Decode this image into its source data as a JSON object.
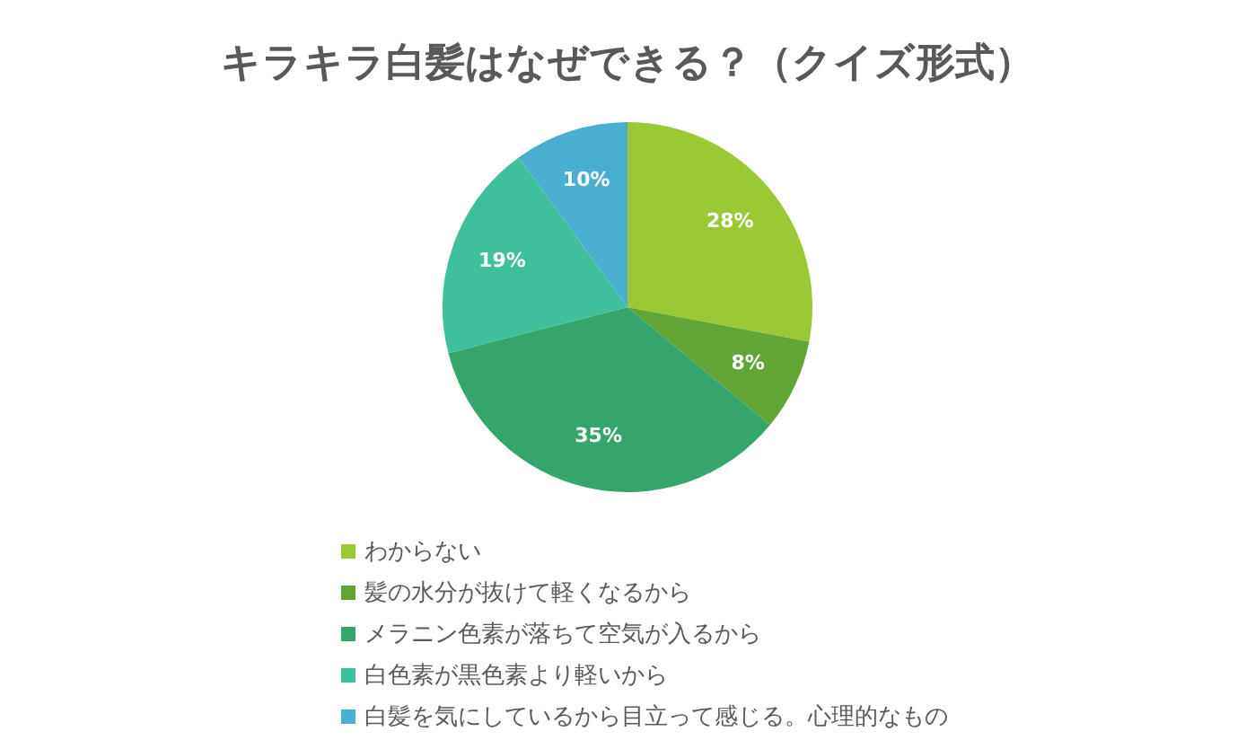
{
  "chart_data": {
    "type": "pie",
    "title": "キラキラ白髪はなぜできる？（クイズ形式）",
    "categories": [
      "わからない",
      "髪の水分が抜けて軽くなるから",
      "メラニン色素が落ちて空気が入るから",
      "白色素が黒色素より軽いから",
      "白髪を気にしているから目立って感じる。心理的なもの"
    ],
    "values": [
      28,
      8,
      35,
      19,
      10
    ],
    "value_labels": [
      "28%",
      "8%",
      "35%",
      "19%",
      "10%"
    ],
    "colors": [
      "#9bc935",
      "#62a436",
      "#36a56c",
      "#3fbf9c",
      "#4aaed0"
    ],
    "legend": "bottom"
  }
}
